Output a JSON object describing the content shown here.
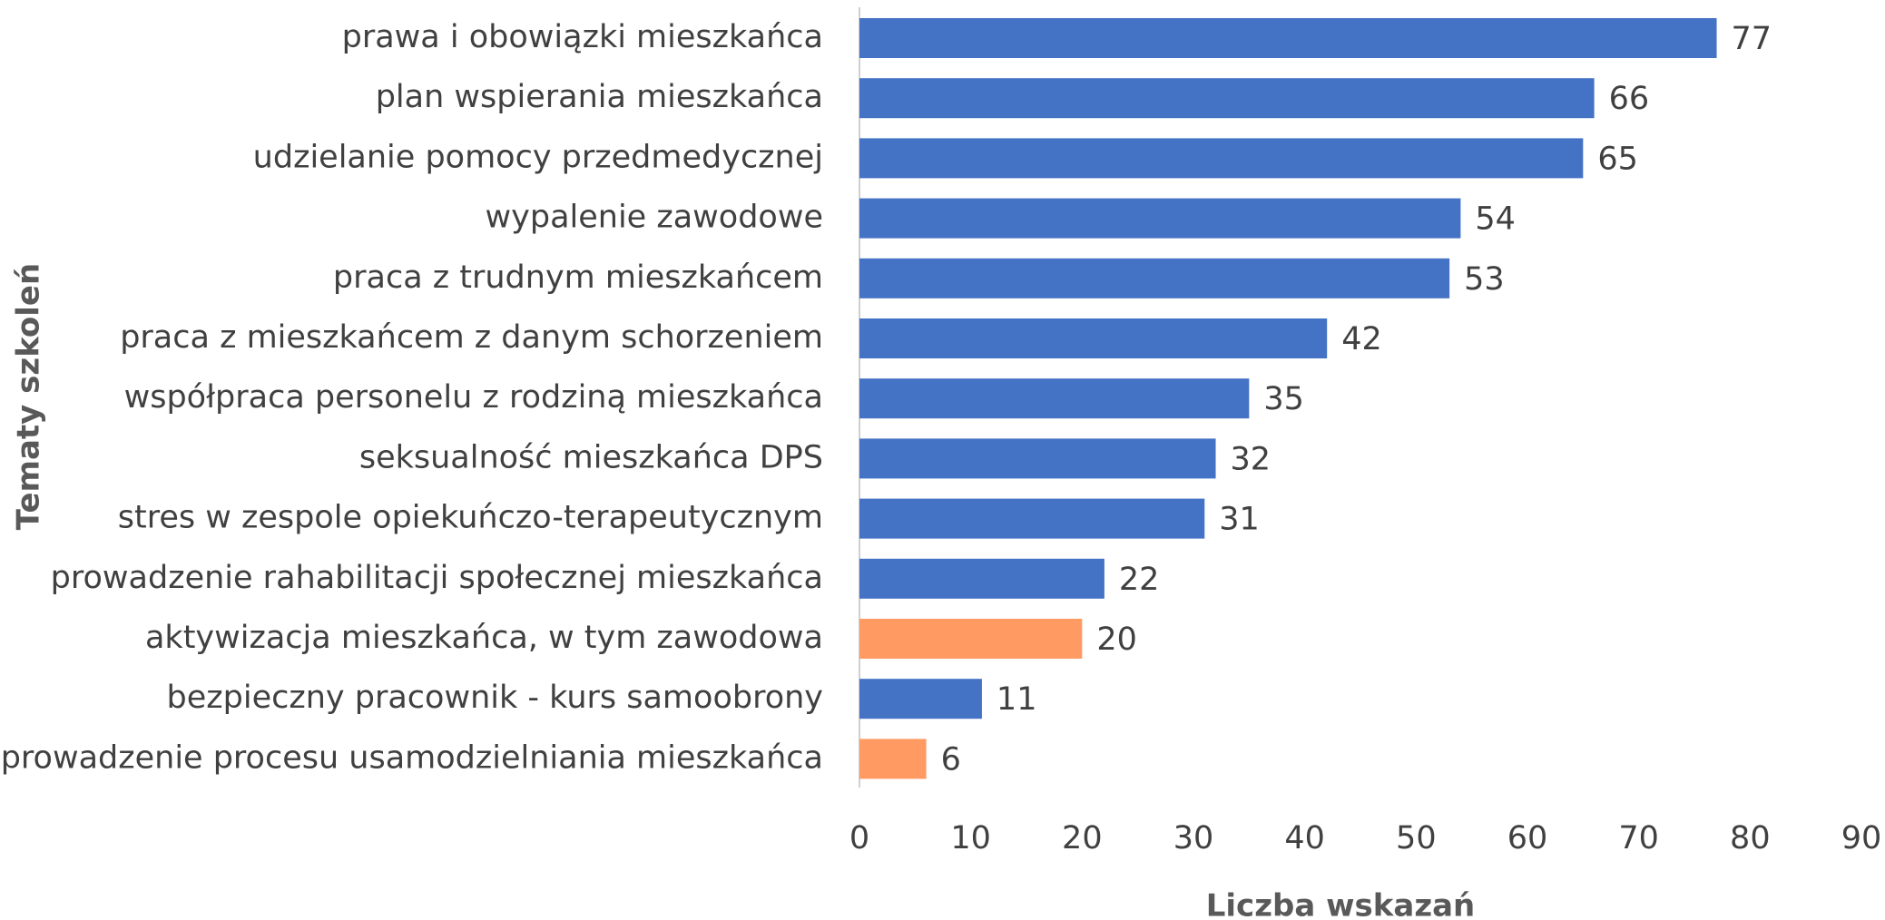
{
  "chart_data": {
    "type": "bar",
    "orientation": "horizontal",
    "x_axis_label": "Liczba wskazań",
    "y_axis_label": "Tematy szkoleń",
    "categories": [
      "prawa i obowiązki mieszkańca",
      "plan wspierania mieszkańca",
      "udzielanie pomocy przedmedycznej",
      "wypalenie zawodowe",
      "praca z trudnym mieszkańcem",
      "praca z mieszkańcem z danym schorzeniem",
      "współpraca personelu z rodziną mieszkańca",
      "seksualność mieszkańca DPS",
      "stres w zespole opiekuńczo-terapeutycznym",
      "prowadzenie rahabilitacji społecznej mieszkańca",
      "aktywizacja mieszkańca, w tym zawodowa",
      "bezpieczny pracownik - kurs samoobrony",
      "prowadzenie procesu usamodzielniania mieszkańca"
    ],
    "values": [
      77,
      66,
      65,
      54,
      53,
      42,
      35,
      32,
      31,
      22,
      20,
      11,
      6
    ],
    "colors": [
      "#4472c4",
      "#4472c4",
      "#4472c4",
      "#4472c4",
      "#4472c4",
      "#4472c4",
      "#4472c4",
      "#4472c4",
      "#4472c4",
      "#4472c4",
      "#ff9a62",
      "#4472c4",
      "#ff9a62"
    ],
    "xlim": [
      0,
      90
    ],
    "xticks": [
      0,
      10,
      20,
      30,
      40,
      50,
      60,
      70,
      80,
      90
    ],
    "grid": false
  }
}
